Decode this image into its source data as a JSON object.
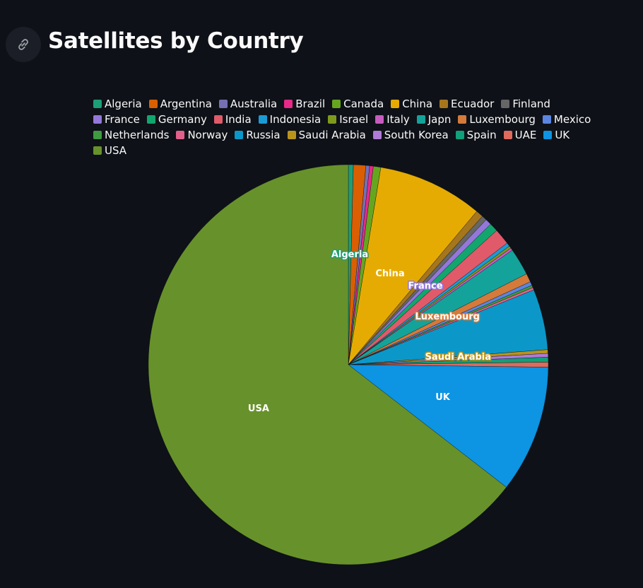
{
  "header": {
    "title": "Satellites by Country",
    "link_icon": "link-icon"
  },
  "colors": {
    "background": "#0e1117",
    "text": "#fafafa"
  },
  "chart_data": {
    "type": "pie",
    "title": "Satellites by Country",
    "legend_placement": "top",
    "start_angle_deg": 0,
    "direction": "clockwise",
    "slices": [
      {
        "label": "Algeria",
        "value": 0.4,
        "color": "#1c9e77",
        "show_label": true
      },
      {
        "label": "Argentina",
        "value": 1.0,
        "color": "#d95f02",
        "show_label": false
      },
      {
        "label": "Australia",
        "value": 0.3,
        "color": "#7570b3",
        "show_label": false
      },
      {
        "label": "Brazil",
        "value": 0.3,
        "color": "#e7298a",
        "show_label": false
      },
      {
        "label": "Canada",
        "value": 0.6,
        "color": "#66a61e",
        "show_label": false
      },
      {
        "label": "China",
        "value": 8.5,
        "color": "#e6ab02",
        "show_label": true
      },
      {
        "label": "Ecuador",
        "value": 0.6,
        "color": "#a6761d",
        "show_label": false
      },
      {
        "label": "Finland",
        "value": 0.4,
        "color": "#666666",
        "show_label": false
      },
      {
        "label": "France",
        "value": 0.5,
        "color": "#9377d9",
        "show_label": true
      },
      {
        "label": "Germany",
        "value": 0.7,
        "color": "#12a66e",
        "show_label": false
      },
      {
        "label": "India",
        "value": 1.3,
        "color": "#e05a6a",
        "show_label": false
      },
      {
        "label": "Indonesia",
        "value": 0.3,
        "color": "#1b9bd6",
        "show_label": false
      },
      {
        "label": "Israel",
        "value": 0.2,
        "color": "#7d9a1d",
        "show_label": false
      },
      {
        "label": "Italy",
        "value": 0.2,
        "color": "#c85bc0",
        "show_label": false
      },
      {
        "label": "Japn",
        "value": 2.2,
        "color": "#14a39a",
        "show_label": false
      },
      {
        "label": "Luxembourg",
        "value": 0.7,
        "color": "#d47a3a",
        "show_label": true
      },
      {
        "label": "Mexico",
        "value": 0.3,
        "color": "#5b85e0",
        "show_label": false
      },
      {
        "label": "Netherlands",
        "value": 0.2,
        "color": "#3f9a41",
        "show_label": false
      },
      {
        "label": "Norway",
        "value": 0.2,
        "color": "#e0608a",
        "show_label": false
      },
      {
        "label": "Russia",
        "value": 4.9,
        "color": "#0b98c8",
        "show_label": false
      },
      {
        "label": "Saudi Arabia",
        "value": 0.3,
        "color": "#b8931c",
        "show_label": true
      },
      {
        "label": "South Korea",
        "value": 0.3,
        "color": "#b07ad6",
        "show_label": false
      },
      {
        "label": "Spain",
        "value": 0.4,
        "color": "#10a07a",
        "show_label": false
      },
      {
        "label": "UAE",
        "value": 0.4,
        "color": "#e06a5c",
        "show_label": false
      },
      {
        "label": "UK",
        "value": 10.3,
        "color": "#0d94e3",
        "show_label": true
      },
      {
        "label": "USA",
        "value": 64.5,
        "color": "#67922b",
        "show_label": true
      }
    ]
  }
}
